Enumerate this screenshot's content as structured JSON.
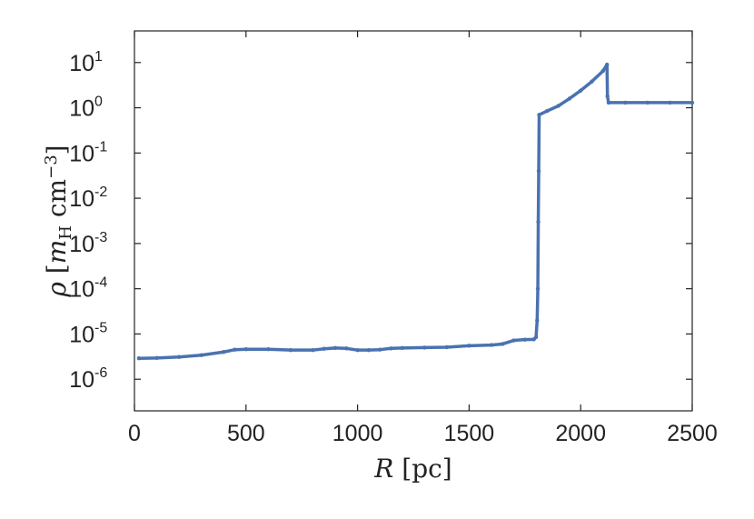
{
  "chart_data": {
    "type": "line",
    "title": "",
    "xlabel": "R [pc]",
    "ylabel": "ρ [m_H cm^-3]",
    "xlim": [
      0,
      2500
    ],
    "ylim": [
      2e-07,
      50
    ],
    "yscale": "log",
    "grid": false,
    "legend": "none",
    "x_ticks": [
      {
        "value": 0,
        "label": "0"
      },
      {
        "value": 500,
        "label": "500"
      },
      {
        "value": 1000,
        "label": "1000"
      },
      {
        "value": 1500,
        "label": "1500"
      },
      {
        "value": 2000,
        "label": "2000"
      },
      {
        "value": 2500,
        "label": "2500"
      }
    ],
    "y_ticks": [
      {
        "value": 1e-06,
        "base": "10",
        "exp": "-6"
      },
      {
        "value": 1e-05,
        "base": "10",
        "exp": "-5"
      },
      {
        "value": 0.0001,
        "base": "10",
        "exp": "-4"
      },
      {
        "value": 0.001,
        "base": "10",
        "exp": "-3"
      },
      {
        "value": 0.01,
        "base": "10",
        "exp": "-2"
      },
      {
        "value": 0.1,
        "base": "10",
        "exp": "-1"
      },
      {
        "value": 1,
        "base": "10",
        "exp": "0"
      },
      {
        "value": 10,
        "base": "10",
        "exp": "1"
      }
    ],
    "series": [
      {
        "color": "#4a72b0",
        "points": [
          [
            20,
            2.9e-06
          ],
          [
            100,
            2.95e-06
          ],
          [
            200,
            3.1e-06
          ],
          [
            300,
            3.4e-06
          ],
          [
            400,
            4e-06
          ],
          [
            450,
            4.5e-06
          ],
          [
            500,
            4.6e-06
          ],
          [
            600,
            4.6e-06
          ],
          [
            700,
            4.4e-06
          ],
          [
            800,
            4.4e-06
          ],
          [
            850,
            4.7e-06
          ],
          [
            900,
            4.9e-06
          ],
          [
            950,
            4.8e-06
          ],
          [
            1000,
            4.4e-06
          ],
          [
            1050,
            4.4e-06
          ],
          [
            1100,
            4.5e-06
          ],
          [
            1150,
            4.8e-06
          ],
          [
            1200,
            4.9e-06
          ],
          [
            1300,
            5e-06
          ],
          [
            1400,
            5.1e-06
          ],
          [
            1500,
            5.5e-06
          ],
          [
            1600,
            5.7e-06
          ],
          [
            1650,
            6e-06
          ],
          [
            1700,
            7.2e-06
          ],
          [
            1750,
            7.5e-06
          ],
          [
            1790,
            7.6e-06
          ],
          [
            1800,
            8.5e-06
          ],
          [
            1805,
            2e-05
          ],
          [
            1808,
            0.0001
          ],
          [
            1810,
            0.003
          ],
          [
            1812,
            0.04
          ],
          [
            1814,
            0.7
          ],
          [
            1850,
            0.85
          ],
          [
            1900,
            1.1
          ],
          [
            1950,
            1.6
          ],
          [
            2000,
            2.4
          ],
          [
            2050,
            3.8
          ],
          [
            2100,
            6.5
          ],
          [
            2118,
            9.0
          ],
          [
            2120,
            1.8
          ],
          [
            2125,
            1.3
          ],
          [
            2200,
            1.3
          ],
          [
            2300,
            1.3
          ],
          [
            2400,
            1.3
          ],
          [
            2500,
            1.3
          ]
        ]
      }
    ]
  }
}
